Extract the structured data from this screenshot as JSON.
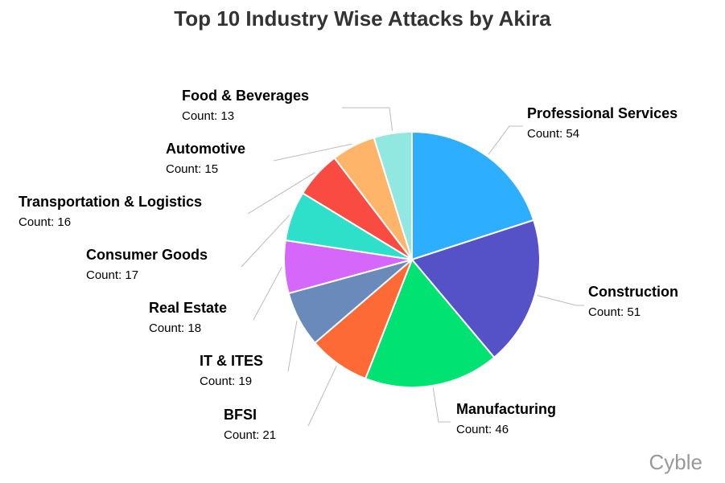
{
  "chart_data": {
    "type": "pie",
    "title": "Top 10 Industry Wise Attacks by Akira",
    "count_prefix": "Count: ",
    "slices": [
      {
        "label": "Professional Services",
        "value": 54,
        "color": "#2eaeff"
      },
      {
        "label": "Construction",
        "value": 51,
        "color": "#5551c6"
      },
      {
        "label": "Manufacturing",
        "value": 46,
        "color": "#00e272"
      },
      {
        "label": "BFSI",
        "value": 21,
        "color": "#fe6a35"
      },
      {
        "label": "IT & ITES",
        "value": 19,
        "color": "#6b8abc"
      },
      {
        "label": "Real Estate",
        "value": 18,
        "color": "#d568fb"
      },
      {
        "label": "Consumer Goods",
        "value": 17,
        "color": "#2ee0ca"
      },
      {
        "label": "Transportation & Logistics",
        "value": 16,
        "color": "#fa4b42"
      },
      {
        "label": "Automotive",
        "value": 15,
        "color": "#feb56a"
      },
      {
        "label": "Food & Beverages",
        "value": 13,
        "color": "#91e8e1"
      }
    ],
    "start_angle": "top",
    "direction": "clockwise"
  },
  "credit": "Cyble"
}
